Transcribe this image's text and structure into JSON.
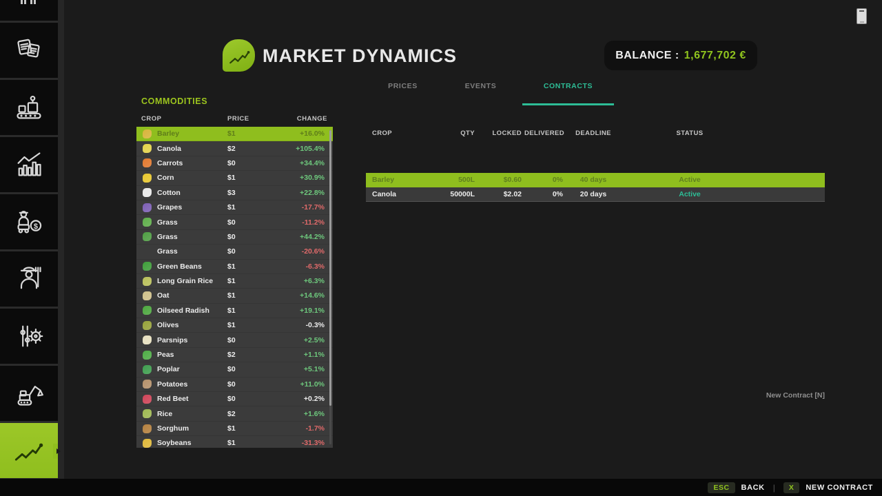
{
  "header": {
    "title": "MARKET DYNAMICS",
    "balance_label": "BALANCE :",
    "balance_value": "1,677,702 €"
  },
  "tabs": [
    {
      "label": "PRICES",
      "active": false
    },
    {
      "label": "EVENTS",
      "active": false
    },
    {
      "label": "CONTRACTS",
      "active": true
    }
  ],
  "sidebar": {
    "items": [
      {
        "icon": "top-clipped-icon",
        "active": false
      },
      {
        "icon": "documents-icon",
        "active": false
      },
      {
        "icon": "production-icon",
        "active": false
      },
      {
        "icon": "statistics-icon",
        "active": false
      },
      {
        "icon": "vehicle-finance-icon",
        "active": false
      },
      {
        "icon": "farmer-icon",
        "active": false
      },
      {
        "icon": "settings-icon",
        "active": false
      },
      {
        "icon": "construction-icon",
        "active": false
      },
      {
        "icon": "market-dynamics-icon",
        "active": true
      }
    ]
  },
  "commodities": {
    "title": "COMMODITIES",
    "columns": [
      "CROP",
      "PRICE",
      "CHANGE"
    ],
    "rows": [
      {
        "crop": "Barley",
        "price": "$1",
        "change": "+16.0%",
        "trend": "up",
        "selected": true,
        "icon": "barley-icon",
        "icon_color": "#d8b43a"
      },
      {
        "crop": "Canola",
        "price": "$2",
        "change": "+105.4%",
        "trend": "up",
        "selected": false,
        "icon": "canola-icon",
        "icon_color": "#e3d24a"
      },
      {
        "crop": "Carrots",
        "price": "$0",
        "change": "+34.4%",
        "trend": "up",
        "selected": false,
        "icon": "carrots-icon",
        "icon_color": "#e2792f"
      },
      {
        "crop": "Corn",
        "price": "$1",
        "change": "+30.9%",
        "trend": "up",
        "selected": false,
        "icon": "corn-icon",
        "icon_color": "#e8c72e"
      },
      {
        "crop": "Cotton",
        "price": "$3",
        "change": "+22.8%",
        "trend": "up",
        "selected": false,
        "icon": "cotton-icon",
        "icon_color": "#e9e9e9"
      },
      {
        "crop": "Grapes",
        "price": "$1",
        "change": "-17.7%",
        "trend": "down",
        "selected": false,
        "icon": "grapes-icon",
        "icon_color": "#7d5fb5"
      },
      {
        "crop": "Grass",
        "price": "$0",
        "change": "-11.2%",
        "trend": "down",
        "selected": false,
        "icon": "grass-icon",
        "icon_color": "#5fae4a"
      },
      {
        "crop": "Grass",
        "price": "$0",
        "change": "+44.2%",
        "trend": "up",
        "selected": false,
        "icon": "grass-icon",
        "icon_color": "#4f9e43"
      },
      {
        "crop": "Grass",
        "price": "$0",
        "change": "-20.6%",
        "trend": "down",
        "selected": false,
        "icon": null,
        "icon_color": null
      },
      {
        "crop": "Green Beans",
        "price": "$1",
        "change": "-6.3%",
        "trend": "down",
        "selected": false,
        "icon": "green-beans-icon",
        "icon_color": "#3f9e3a"
      },
      {
        "crop": "Long Grain Rice",
        "price": "$1",
        "change": "+6.3%",
        "trend": "up",
        "selected": false,
        "icon": "long-grain-rice-icon",
        "icon_color": "#b9c05a"
      },
      {
        "crop": "Oat",
        "price": "$1",
        "change": "+14.6%",
        "trend": "up",
        "selected": false,
        "icon": "oat-icon",
        "icon_color": "#cfc08a"
      },
      {
        "crop": "Oilseed Radish",
        "price": "$1",
        "change": "+19.1%",
        "trend": "up",
        "selected": false,
        "icon": "oilseed-radish-icon",
        "icon_color": "#4da83f"
      },
      {
        "crop": "Olives",
        "price": "$1",
        "change": "-0.3%",
        "trend": "flat",
        "selected": false,
        "icon": "olives-icon",
        "icon_color": "#97a23a"
      },
      {
        "crop": "Parsnips",
        "price": "$0",
        "change": "+2.5%",
        "trend": "up",
        "selected": false,
        "icon": "parsnips-icon",
        "icon_color": "#e7e0c0"
      },
      {
        "crop": "Peas",
        "price": "$2",
        "change": "+1.1%",
        "trend": "up",
        "selected": false,
        "icon": "peas-icon",
        "icon_color": "#4fae46"
      },
      {
        "crop": "Poplar",
        "price": "$0",
        "change": "+5.1%",
        "trend": "up",
        "selected": false,
        "icon": "poplar-icon",
        "icon_color": "#3f9e4f"
      },
      {
        "crop": "Potatoes",
        "price": "$0",
        "change": "+11.0%",
        "trend": "up",
        "selected": false,
        "icon": "potatoes-icon",
        "icon_color": "#b5916b"
      },
      {
        "crop": "Red Beet",
        "price": "$0",
        "change": "+0.2%",
        "trend": "flat",
        "selected": false,
        "icon": "red-beet-icon",
        "icon_color": "#cf4458"
      },
      {
        "crop": "Rice",
        "price": "$2",
        "change": "+1.6%",
        "trend": "up",
        "selected": false,
        "icon": "rice-icon",
        "icon_color": "#9fb952"
      },
      {
        "crop": "Sorghum",
        "price": "$1",
        "change": "-1.7%",
        "trend": "down",
        "selected": false,
        "icon": "sorghum-icon",
        "icon_color": "#b5813f"
      },
      {
        "crop": "Soybeans",
        "price": "$1",
        "change": "-31.3%",
        "trend": "down",
        "selected": false,
        "icon": "soybeans-icon",
        "icon_color": "#e0b93a"
      }
    ]
  },
  "contracts": {
    "columns": [
      "CROP",
      "QTY",
      "LOCKED",
      "DELIVERED",
      "DEADLINE",
      "STATUS"
    ],
    "rows": [
      {
        "crop": "Barley",
        "qty": "500L",
        "locked": "$0.60",
        "delivered": "0%",
        "deadline": "40 days",
        "status": "Active",
        "selected": true
      },
      {
        "crop": "Canola",
        "qty": "50000L",
        "locked": "$2.02",
        "delivered": "0%",
        "deadline": "20 days",
        "status": "Active",
        "selected": false
      }
    ],
    "hint": "New Contract [N]"
  },
  "bottom_bar": {
    "esc_key": "ESC",
    "back_label": "BACK",
    "separator": "|",
    "x_key": "X",
    "new_contract_label": "NEW CONTRACT"
  },
  "colors": {
    "accent_green": "#8fbe1e",
    "balance_green": "#90c41e",
    "teal": "#2dbd96",
    "positive": "#6ec87d",
    "negative": "#e06a6a"
  }
}
